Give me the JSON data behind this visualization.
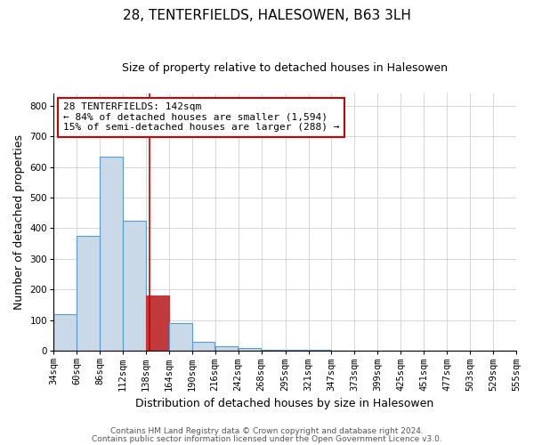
{
  "title": "28, TENTERFIELDS, HALESOWEN, B63 3LH",
  "subtitle": "Size of property relative to detached houses in Halesowen",
  "xlabel": "Distribution of detached houses by size in Halesowen",
  "ylabel": "Number of detached properties",
  "footnote1": "Contains HM Land Registry data © Crown copyright and database right 2024.",
  "footnote2": "Contains public sector information licensed under the Open Government Licence v3.0.",
  "annotation_line1": "28 TENTERFIELDS: 142sqm",
  "annotation_line2": "← 84% of detached houses are smaller (1,594)",
  "annotation_line3": "15% of semi-detached houses are larger (288) →",
  "property_size": 142,
  "red_line_x": 142,
  "bin_edges": [
    34,
    60,
    86,
    112,
    138,
    164,
    190,
    216,
    242,
    268,
    295,
    321,
    347,
    373,
    399,
    425,
    451,
    477,
    503,
    529,
    555
  ],
  "bar_heights": [
    120,
    375,
    635,
    425,
    180,
    90,
    30,
    15,
    10,
    5,
    5,
    5,
    0,
    0,
    0,
    0,
    0,
    0,
    0,
    0
  ],
  "bar_color_normal": "#c9d9e8",
  "bar_color_highlight": "#c0393b",
  "bar_edge_color": "#5b9bd5",
  "bar_edge_highlight": "#c0393b",
  "red_line_color": "#cc0000",
  "annotation_box_color": "#cc0000",
  "background_color": "#ffffff",
  "ylim": [
    0,
    840
  ],
  "yticks": [
    0,
    100,
    200,
    300,
    400,
    500,
    600,
    700,
    800
  ],
  "grid_color": "#d0d0d0",
  "title_fontsize": 11,
  "subtitle_fontsize": 9,
  "axis_label_fontsize": 9,
  "tick_fontsize": 7.5,
  "annotation_fontsize": 8,
  "footnote_fontsize": 6.5
}
